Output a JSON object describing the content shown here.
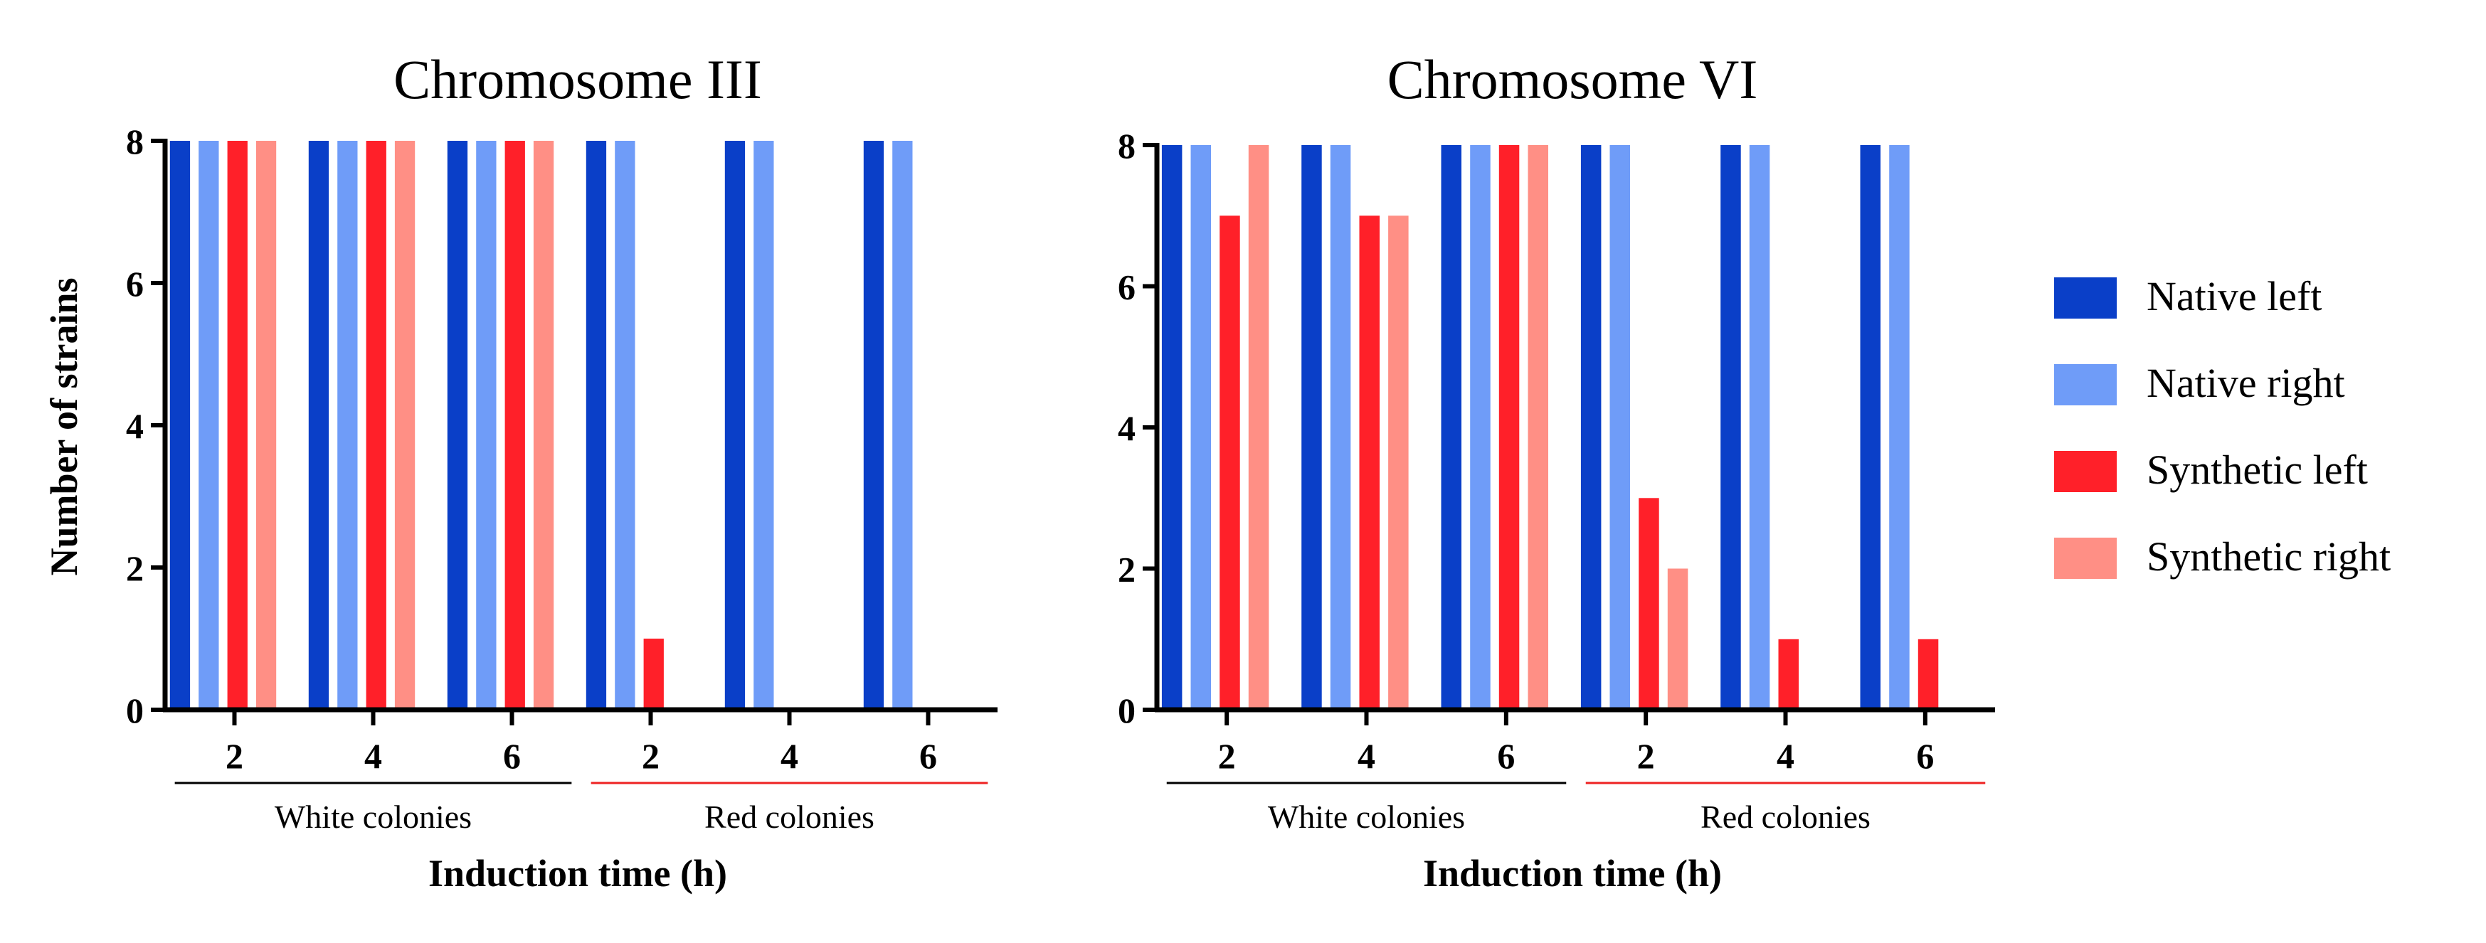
{
  "chart_data": [
    {
      "type": "bar",
      "title": "Chromosome III",
      "ylabel": "Number of strains",
      "xlabel": "Induction time (h)",
      "ylim": [
        0,
        8
      ],
      "yticks": [
        "0",
        "2",
        "4",
        "6",
        "8"
      ],
      "categories": [
        "2",
        "4",
        "6",
        "2",
        "4",
        "6"
      ],
      "groups": [
        {
          "label": "White colonies",
          "color": "#000000"
        },
        {
          "label": "Red colonies",
          "color": "#ee2222"
        }
      ],
      "series": [
        {
          "name": "Native left",
          "values": [
            8,
            8,
            8,
            8,
            8,
            8
          ]
        },
        {
          "name": "Native right",
          "values": [
            8,
            8,
            8,
            8,
            8,
            8
          ]
        },
        {
          "name": "Synthetic left",
          "values": [
            8,
            8,
            8,
            1,
            0,
            0
          ]
        },
        {
          "name": "Synthetic right",
          "values": [
            8,
            8,
            8,
            0,
            0,
            0
          ]
        }
      ]
    },
    {
      "type": "bar",
      "title": "Chromosome VI",
      "ylabel": "",
      "xlabel": "Induction time (h)",
      "ylim": [
        0,
        8
      ],
      "yticks": [
        "0",
        "2",
        "4",
        "6",
        "8"
      ],
      "categories": [
        "2",
        "4",
        "6",
        "2",
        "4",
        "6"
      ],
      "groups": [
        {
          "label": "White colonies",
          "color": "#000000"
        },
        {
          "label": "Red colonies",
          "color": "#ee2222"
        }
      ],
      "series": [
        {
          "name": "Native left",
          "values": [
            8,
            8,
            8,
            8,
            8,
            8
          ]
        },
        {
          "name": "Native right",
          "values": [
            8,
            8,
            8,
            8,
            8,
            8
          ]
        },
        {
          "name": "Synthetic left",
          "values": [
            7,
            7,
            8,
            3,
            1,
            1
          ]
        },
        {
          "name": "Synthetic right",
          "values": [
            8,
            7,
            8,
            2,
            0,
            0
          ]
        }
      ]
    }
  ],
  "legend": {
    "items": [
      {
        "label": "Native left",
        "color": "#0a3fc8"
      },
      {
        "label": "Native right",
        "color": "#6f9cf8"
      },
      {
        "label": "Synthetic left",
        "color": "#ff2029"
      },
      {
        "label": "Synthetic right",
        "color": "#ff8f85"
      }
    ]
  }
}
